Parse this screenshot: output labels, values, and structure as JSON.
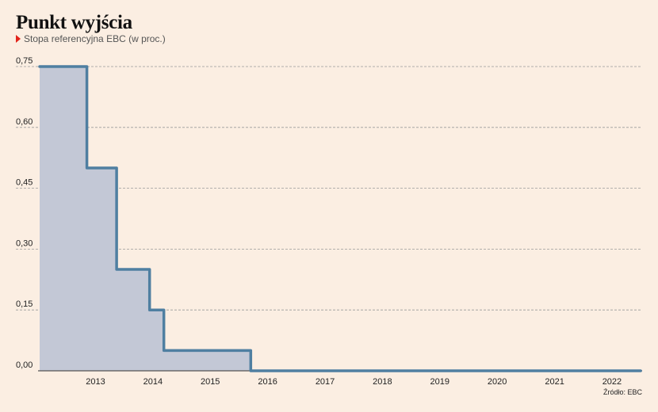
{
  "header": {
    "title": "Punkt wyjścia",
    "subtitle": "Stopa referencyjna EBC (w proc.)"
  },
  "footer": {
    "source": "Źródło: EBC"
  },
  "colors": {
    "background": "#fbeee2",
    "line": "#4f7fa1",
    "fill": "#c3c8d6",
    "grid": "#9a9a9a",
    "marker": "#e2231a"
  },
  "chart_data": {
    "type": "area",
    "title": "Punkt wyjścia",
    "subtitle": "Stopa referencyjna EBC (w proc.)",
    "xlabel": "",
    "ylabel": "",
    "xlim": [
      "2012-07-01",
      "2022-12-31"
    ],
    "ylim": [
      0,
      0.75
    ],
    "y_ticks": [
      "0,00",
      "0,15",
      "0,30",
      "0,45",
      "0,60",
      "0,75"
    ],
    "y_tick_values": [
      0,
      0.15,
      0.3,
      0.45,
      0.6,
      0.75
    ],
    "x_ticks": [
      "2013",
      "2014",
      "2015",
      "2016",
      "2017",
      "2018",
      "2019",
      "2020",
      "2021",
      "2022"
    ],
    "grid": "horizontal dashed",
    "legend": "none",
    "series": [
      {
        "points": [
          {
            "x": "2012-07-11",
            "y": 0.75
          },
          {
            "x": "2013-05-08",
            "y": 0.75
          },
          {
            "x": "2013-05-08",
            "y": 0.5
          },
          {
            "x": "2013-11-13",
            "y": 0.5
          },
          {
            "x": "2013-11-13",
            "y": 0.25
          },
          {
            "x": "2014-06-11",
            "y": 0.25
          },
          {
            "x": "2014-06-11",
            "y": 0.15
          },
          {
            "x": "2014-09-10",
            "y": 0.15
          },
          {
            "x": "2014-09-10",
            "y": 0.05
          },
          {
            "x": "2016-03-16",
            "y": 0.05
          },
          {
            "x": "2016-03-16",
            "y": 0.0
          },
          {
            "x": "2022-12-31",
            "y": 0.0
          }
        ]
      }
    ]
  }
}
